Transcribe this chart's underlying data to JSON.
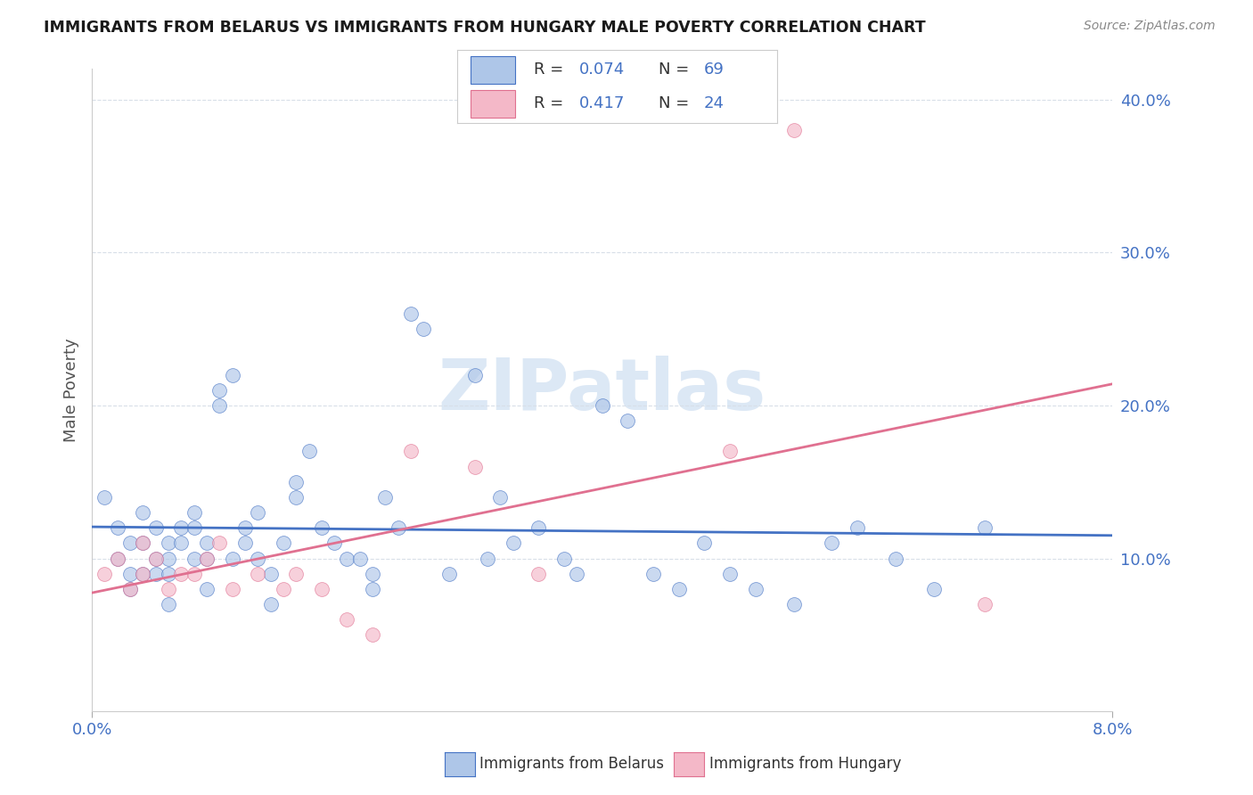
{
  "title": "IMMIGRANTS FROM BELARUS VS IMMIGRANTS FROM HUNGARY MALE POVERTY CORRELATION CHART",
  "source": "Source: ZipAtlas.com",
  "ylabel": "Male Poverty",
  "y_ticks": [
    0.1,
    0.2,
    0.3,
    0.4
  ],
  "y_tick_labels": [
    "10.0%",
    "20.0%",
    "30.0%",
    "40.0%"
  ],
  "xlim": [
    0.0,
    0.08
  ],
  "ylim": [
    0.0,
    0.42
  ],
  "R_color": "#4472c4",
  "N_color": "#4472c4",
  "belarus_color": "#aec6e8",
  "hungary_color": "#f4b8c8",
  "belarus_line_color": "#4472c4",
  "hungary_line_color": "#e07090",
  "watermark_color": "#dce8f5",
  "background_color": "#ffffff",
  "grid_color": "#d8dfe8",
  "belarus_label": "Immigrants from Belarus",
  "hungary_label": "Immigrants from Hungary",
  "belarus_R": "0.074",
  "belarus_N": "69",
  "hungary_R": "0.417",
  "hungary_N": "24",
  "belarus_x": [
    0.001,
    0.002,
    0.002,
    0.003,
    0.003,
    0.003,
    0.004,
    0.004,
    0.004,
    0.005,
    0.005,
    0.005,
    0.006,
    0.006,
    0.006,
    0.006,
    0.007,
    0.007,
    0.008,
    0.008,
    0.008,
    0.009,
    0.009,
    0.009,
    0.01,
    0.01,
    0.011,
    0.011,
    0.012,
    0.012,
    0.013,
    0.013,
    0.014,
    0.014,
    0.015,
    0.016,
    0.016,
    0.017,
    0.018,
    0.019,
    0.02,
    0.021,
    0.022,
    0.022,
    0.023,
    0.024,
    0.025,
    0.026,
    0.028,
    0.03,
    0.031,
    0.032,
    0.033,
    0.035,
    0.037,
    0.038,
    0.04,
    0.042,
    0.044,
    0.046,
    0.048,
    0.05,
    0.052,
    0.055,
    0.058,
    0.06,
    0.063,
    0.066,
    0.07
  ],
  "belarus_y": [
    0.14,
    0.12,
    0.1,
    0.11,
    0.09,
    0.08,
    0.13,
    0.11,
    0.09,
    0.12,
    0.1,
    0.09,
    0.11,
    0.1,
    0.09,
    0.07,
    0.12,
    0.11,
    0.13,
    0.12,
    0.1,
    0.11,
    0.1,
    0.08,
    0.21,
    0.2,
    0.22,
    0.1,
    0.12,
    0.11,
    0.13,
    0.1,
    0.09,
    0.07,
    0.11,
    0.15,
    0.14,
    0.17,
    0.12,
    0.11,
    0.1,
    0.1,
    0.09,
    0.08,
    0.14,
    0.12,
    0.26,
    0.25,
    0.09,
    0.22,
    0.1,
    0.14,
    0.11,
    0.12,
    0.1,
    0.09,
    0.2,
    0.19,
    0.09,
    0.08,
    0.11,
    0.09,
    0.08,
    0.07,
    0.11,
    0.12,
    0.1,
    0.08,
    0.12
  ],
  "hungary_x": [
    0.001,
    0.002,
    0.003,
    0.004,
    0.004,
    0.005,
    0.006,
    0.007,
    0.008,
    0.009,
    0.01,
    0.011,
    0.013,
    0.015,
    0.016,
    0.018,
    0.02,
    0.022,
    0.025,
    0.03,
    0.035,
    0.05,
    0.055,
    0.07
  ],
  "hungary_y": [
    0.09,
    0.1,
    0.08,
    0.11,
    0.09,
    0.1,
    0.08,
    0.09,
    0.09,
    0.1,
    0.11,
    0.08,
    0.09,
    0.08,
    0.09,
    0.08,
    0.06,
    0.05,
    0.17,
    0.16,
    0.09,
    0.17,
    0.38,
    0.07
  ]
}
